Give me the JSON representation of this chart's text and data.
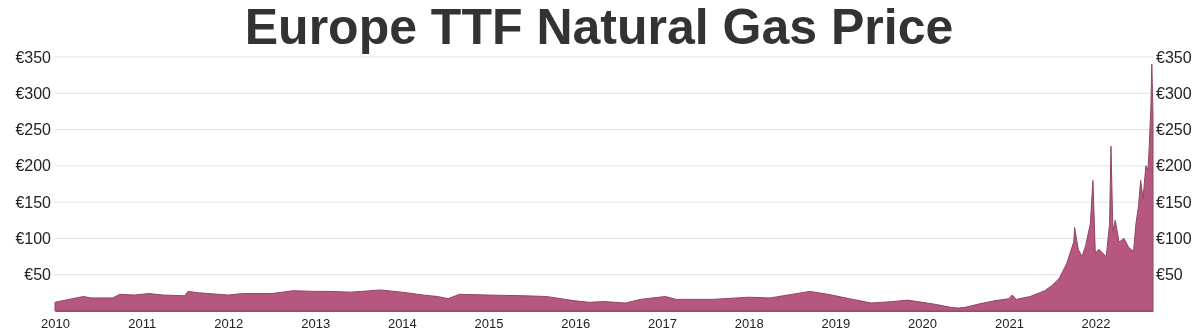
{
  "chart_data": {
    "type": "area",
    "title": "Europe TTF Natural Gas Price",
    "x": [
      "2010-01-01",
      "2010-03-01",
      "2010-05-01",
      "2010-06-01",
      "2010-09-01",
      "2010-10-01",
      "2010-12-01",
      "2011-02-01",
      "2011-04-01",
      "2011-07-01",
      "2011-07-15",
      "2011-09-01",
      "2012-01-01",
      "2012-03-01",
      "2012-07-01",
      "2012-10-01",
      "2013-01-01",
      "2013-03-01",
      "2013-06-01",
      "2013-10-01",
      "2014-01-01",
      "2014-04-01",
      "2014-06-01",
      "2014-07-15",
      "2014-08-15",
      "2014-09-01",
      "2015-01-01",
      "2015-06-01",
      "2015-09-01",
      "2016-01-01",
      "2016-03-01",
      "2016-05-01",
      "2016-08-01",
      "2016-10-01",
      "2017-01-15",
      "2017-03-01",
      "2017-08-01",
      "2018-01-01",
      "2018-04-01",
      "2018-09-15",
      "2018-12-01",
      "2019-03-01",
      "2019-06-01",
      "2019-09-01",
      "2019-11-01",
      "2020-01-01",
      "2020-03-01",
      "2020-05-01",
      "2020-06-01",
      "2020-07-01",
      "2020-09-01",
      "2020-11-01",
      "2021-01-01",
      "2021-01-15",
      "2021-02-01",
      "2021-04-01",
      "2021-06-01",
      "2021-07-01",
      "2021-08-01",
      "2021-09-01",
      "2021-10-01",
      "2021-10-05",
      "2021-10-20",
      "2021-11-05",
      "2021-11-20",
      "2021-12-10",
      "2021-12-21",
      "2021-12-31",
      "2022-01-15",
      "2022-02-15",
      "2022-03-01",
      "2022-03-07",
      "2022-03-15",
      "2022-03-25",
      "2022-04-10",
      "2022-05-01",
      "2022-05-20",
      "2022-06-10",
      "2022-06-20",
      "2022-07-01",
      "2022-07-10",
      "2022-07-20",
      "2022-08-01",
      "2022-08-10",
      "2022-08-15",
      "2022-08-22",
      "2022-08-26",
      "2022-08-31"
    ],
    "series": [
      {
        "color": "#b5577f",
        "values": [
          12,
          16,
          20,
          18,
          18,
          23,
          22,
          24,
          22,
          21,
          27,
          25,
          22,
          24,
          24,
          28,
          27,
          27,
          26,
          29,
          26,
          22,
          20,
          17,
          21,
          23,
          22,
          21,
          20,
          14,
          12,
          13,
          11,
          16,
          20,
          16,
          16,
          19,
          18,
          27,
          23,
          17,
          11,
          13,
          15,
          12,
          9,
          5,
          4,
          5,
          10,
          14,
          17,
          22,
          16,
          20,
          28,
          35,
          45,
          65,
          95,
          115,
          85,
          75,
          90,
          120,
          180,
          80,
          85,
          75,
          120,
          227,
          110,
          125,
          95,
          100,
          88,
          82,
          120,
          145,
          180,
          155,
          200,
          195,
          225,
          280,
          340,
          270
        ]
      }
    ],
    "xlim": [
      "2010-01-01",
      "2022-08-31"
    ],
    "xticks": [
      {
        "value": "2010-01-01",
        "label": "2010"
      },
      {
        "value": "2011-01-01",
        "label": "2011"
      },
      {
        "value": "2012-01-01",
        "label": "2012"
      },
      {
        "value": "2013-01-01",
        "label": "2013"
      },
      {
        "value": "2014-01-01",
        "label": "2014"
      },
      {
        "value": "2015-01-01",
        "label": "2015"
      },
      {
        "value": "2016-01-01",
        "label": "2016"
      },
      {
        "value": "2017-01-01",
        "label": "2017"
      },
      {
        "value": "2018-01-01",
        "label": "2018"
      },
      {
        "value": "2019-01-01",
        "label": "2019"
      },
      {
        "value": "2020-01-01",
        "label": "2020"
      },
      {
        "value": "2021-01-01",
        "label": "2021"
      },
      {
        "value": "2022-01-01",
        "label": "2022"
      }
    ],
    "ylim": [
      0,
      350
    ],
    "yticks": [
      {
        "value": 50,
        "label": "€50"
      },
      {
        "value": 100,
        "label": "€100"
      },
      {
        "value": 150,
        "label": "€150"
      },
      {
        "value": 200,
        "label": "€200"
      },
      {
        "value": 250,
        "label": "€250"
      },
      {
        "value": 300,
        "label": "€300"
      },
      {
        "value": 350,
        "label": "€350"
      }
    ],
    "y2lim": [
      0,
      350
    ],
    "y2ticks": [
      {
        "value": 50,
        "label": "€50"
      },
      {
        "value": 100,
        "label": "€100"
      },
      {
        "value": 150,
        "label": "€150"
      },
      {
        "value": 200,
        "label": "€200"
      },
      {
        "value": 250,
        "label": "€250"
      },
      {
        "value": 300,
        "label": "€300"
      },
      {
        "value": 350,
        "label": "€350"
      }
    ],
    "grid": "y"
  }
}
